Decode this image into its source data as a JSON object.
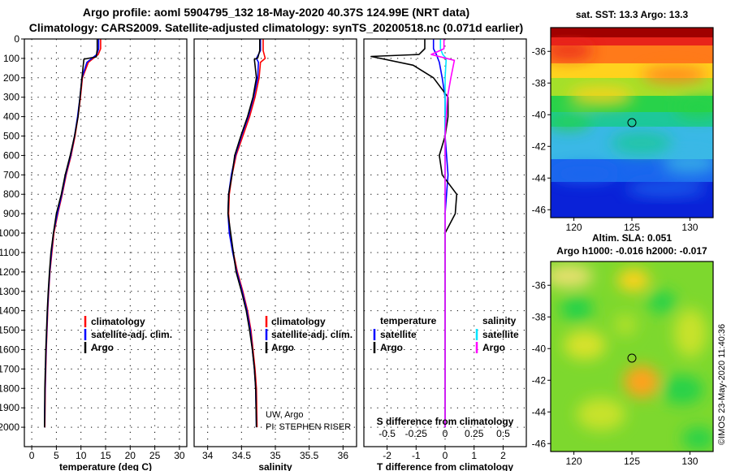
{
  "title_line1": "Argo profile: aoml 5904795_132 18-May-2020 40.37S 124.99E (NRT data)",
  "title_line2": "Climatology: CARS2009. Satellite-adjusted climatology: synTS_20200518.nc (0.071d earlier)",
  "colors": {
    "climatology": "#ff0000",
    "satellite": "#0000ff",
    "argo": "#000000",
    "sat_diff": "#00e5ff",
    "argo_sal_diff": "#ff00ff"
  },
  "chart_data": [
    {
      "type": "line",
      "name": "temperature",
      "xlabel": "temperature (deg C)",
      "xlim": [
        -1.5,
        31.5
      ],
      "xticks": [
        "0",
        "5",
        "10",
        "15",
        "20",
        "25",
        "30"
      ],
      "ylim": [
        0,
        2100
      ],
      "yticks": [
        "0",
        "100",
        "200",
        "300",
        "400",
        "500",
        "600",
        "700",
        "800",
        "900",
        "1000",
        "1100",
        "1200",
        "1300",
        "1400",
        "1500",
        "1600",
        "1700",
        "1800",
        "1900",
        "2000"
      ],
      "legend": [
        "climatology",
        "satellite-adj. clim.",
        "Argo"
      ],
      "series": [
        {
          "name": "climatology",
          "color": "#ff0000",
          "x": [
            14.0,
            14.0,
            13.5,
            11.5,
            10.3,
            9.9,
            9.4,
            8.8,
            8.0,
            7.0,
            6.2,
            5.3,
            4.5,
            4.1,
            3.7,
            3.45,
            3.25,
            3.1,
            2.95,
            2.85,
            2.75,
            2.65
          ],
          "y": [
            0,
            50,
            80,
            120,
            200,
            300,
            400,
            500,
            600,
            700,
            800,
            900,
            1000,
            1100,
            1200,
            1300,
            1400,
            1500,
            1600,
            1700,
            1800,
            2000
          ]
        },
        {
          "name": "satellite-adj. clim.",
          "color": "#0000ff",
          "x": [
            13.6,
            13.6,
            13.2,
            11.2,
            10.2,
            9.8,
            9.3,
            8.7,
            7.9,
            6.9,
            6.1,
            5.2,
            4.4,
            4.0,
            3.65,
            3.4,
            3.2,
            3.05,
            2.9,
            2.8,
            2.7,
            2.6
          ],
          "y": [
            0,
            50,
            80,
            120,
            200,
            300,
            400,
            500,
            600,
            700,
            800,
            900,
            1000,
            1100,
            1200,
            1300,
            1400,
            1500,
            1600,
            1700,
            1800,
            2000
          ]
        },
        {
          "name": "Argo",
          "color": "#000000",
          "x": [
            13.3,
            13.3,
            13.1,
            10.6,
            10.2,
            9.8,
            9.4,
            8.7,
            7.8,
            6.8,
            6.0,
            5.0,
            4.4,
            3.9,
            3.6,
            3.35,
            3.15,
            3.0,
            2.85,
            2.75,
            2.65,
            2.6
          ],
          "y": [
            0,
            55,
            92,
            104,
            200,
            300,
            400,
            500,
            600,
            700,
            800,
            900,
            1000,
            1100,
            1200,
            1300,
            1400,
            1500,
            1600,
            1700,
            1800,
            2000
          ]
        }
      ]
    },
    {
      "type": "line",
      "name": "salinity",
      "xlabel": "salinity",
      "xlim": [
        33.8,
        36.2
      ],
      "xticks": [
        "34",
        "34.5",
        "35",
        "35.5",
        "36"
      ],
      "ylim": [
        0,
        2100
      ],
      "legend": [
        "climatology",
        "satellite-adj. clim.",
        "Argo"
      ],
      "annotations": [
        "UW, Argo",
        "PI: STEPHEN RISER"
      ],
      "series": [
        {
          "name": "climatology",
          "color": "#ff0000",
          "x": [
            34.82,
            34.82,
            34.85,
            34.78,
            34.76,
            34.7,
            34.62,
            34.52,
            34.42,
            34.36,
            34.32,
            34.31,
            34.33,
            34.38,
            34.44,
            34.52,
            34.59,
            34.64,
            34.67,
            34.7,
            34.72,
            34.73
          ],
          "y": [
            0,
            60,
            100,
            120,
            200,
            300,
            400,
            500,
            600,
            700,
            800,
            900,
            1000,
            1100,
            1200,
            1300,
            1400,
            1500,
            1600,
            1700,
            1800,
            2000
          ]
        },
        {
          "name": "satellite-adj. clim.",
          "color": "#0000ff",
          "x": [
            34.78,
            34.78,
            34.72,
            34.75,
            34.74,
            34.68,
            34.6,
            34.5,
            34.41,
            34.35,
            34.31,
            34.3,
            34.32,
            34.37,
            34.43,
            34.51,
            34.58,
            34.63,
            34.66,
            34.69,
            34.71,
            34.72
          ],
          "y": [
            0,
            60,
            100,
            120,
            200,
            300,
            400,
            500,
            600,
            700,
            800,
            900,
            1000,
            1100,
            1200,
            1300,
            1400,
            1500,
            1600,
            1700,
            1800,
            2000
          ]
        },
        {
          "name": "Argo",
          "color": "#000000",
          "x": [
            34.77,
            34.77,
            34.74,
            34.69,
            34.72,
            34.67,
            34.59,
            34.49,
            34.4,
            34.36,
            34.31,
            34.3,
            34.34,
            34.38,
            34.42,
            34.5,
            34.57,
            34.62,
            34.66,
            34.69,
            34.71,
            34.72
          ],
          "y": [
            0,
            60,
            98,
            105,
            200,
            300,
            400,
            500,
            600,
            700,
            800,
            900,
            1000,
            1100,
            1200,
            1300,
            1400,
            1500,
            1600,
            1700,
            1800,
            2000
          ]
        }
      ]
    },
    {
      "type": "line",
      "name": "difference from climatology",
      "xlabel": "T difference from climatology",
      "xlim": [
        -2.8,
        2.8
      ],
      "xticks": [
        "-2",
        "-1",
        "0",
        "1",
        "2"
      ],
      "xticks_s": [
        "-0.5",
        "-0.25",
        "0",
        "0.25",
        "0.5"
      ],
      "s_axis_label": "S difference from climatology",
      "ylim": [
        0,
        2100
      ],
      "legend_headers": [
        "temperature",
        "salinity"
      ],
      "legend": [
        "satellite",
        "Argo",
        "satellite",
        "Argo"
      ],
      "series": [
        {
          "name": "T satellite",
          "color": "#0000ff",
          "x": [
            -0.4,
            -0.4,
            -0.3,
            -0.2,
            -0.1,
            0,
            0,
            0,
            0.05,
            0.1,
            0.05,
            0,
            0,
            0,
            0,
            0,
            0,
            0
          ],
          "y": [
            0,
            50,
            80,
            120,
            200,
            300,
            400,
            500,
            600,
            700,
            800,
            900,
            1000,
            1200,
            1400,
            1600,
            1800,
            2000
          ]
        },
        {
          "name": "T Argo",
          "color": "#000000",
          "x": [
            -0.7,
            -0.7,
            -0.9,
            -2.55,
            -1.1,
            -0.4,
            0.1,
            0.1,
            0,
            -0.2,
            -0.1,
            0.4,
            0.35,
            0,
            0,
            0,
            0,
            0,
            0,
            0
          ],
          "y": [
            0,
            50,
            80,
            90,
            135,
            200,
            300,
            400,
            500,
            600,
            700,
            800,
            900,
            1000,
            1100,
            1200,
            1400,
            1600,
            1800,
            2000
          ]
        },
        {
          "name": "S satellite",
          "color": "#00e5ff",
          "x": [
            -0.04,
            -0.04,
            -0.02,
            0.01,
            0,
            0,
            0,
            0,
            0,
            0,
            0,
            0,
            0,
            0
          ],
          "y": [
            0,
            50,
            80,
            100,
            200,
            300,
            500,
            700,
            900,
            1100,
            1300,
            1500,
            1700,
            2000
          ]
        },
        {
          "name": "S Argo",
          "color": "#ff00ff",
          "x": [
            -0.01,
            -0.01,
            -0.12,
            0.08,
            0.05,
            0.02,
            0,
            0,
            0,
            0,
            0,
            0,
            0,
            0
          ],
          "y": [
            0,
            50,
            80,
            110,
            200,
            300,
            500,
            700,
            900,
            1100,
            1300,
            1500,
            1700,
            2000
          ]
        }
      ]
    },
    {
      "type": "heatmap",
      "name": "sat SST map",
      "title": "sat. SST: 13.3 Argo: 13.3",
      "xlim": [
        118,
        132
      ],
      "ylim": [
        -46.5,
        -34.5
      ],
      "xticks": [
        "120",
        "125",
        "130"
      ],
      "yticks": [
        "-36",
        "-38",
        "-40",
        "-42",
        "-44",
        "-46"
      ],
      "marker": {
        "lon": 124.99,
        "lat": -40.37
      }
    },
    {
      "type": "heatmap",
      "name": "altimetry map",
      "title": "Altim. SLA: 0.051",
      "subtitle": "Argo h1000: -0.016 h2000: -0.017",
      "xlim": [
        118,
        132
      ],
      "ylim": [
        -46.5,
        -34.5
      ],
      "xticks": [
        "120",
        "125",
        "130"
      ],
      "yticks": [
        "-36",
        "-38",
        "-40",
        "-42",
        "-44",
        "-46"
      ],
      "marker": {
        "lon": 124.99,
        "lat": -40.37
      }
    }
  ],
  "watermark": "©IMOS 23-May-2020 11:40:36"
}
